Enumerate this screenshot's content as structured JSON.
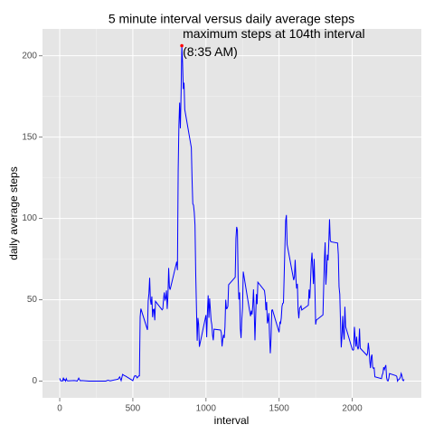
{
  "chart_data": {
    "type": "line",
    "title": "5 minute interval versus daily average steps",
    "x_label": "interval",
    "y_label": "daily average steps",
    "x": [
      0,
      5,
      10,
      15,
      20,
      25,
      30,
      35,
      40,
      45,
      50,
      55,
      100,
      110,
      120,
      130,
      140,
      150,
      200,
      215,
      230,
      245,
      300,
      315,
      330,
      345,
      400,
      410,
      420,
      430,
      440,
      450,
      500,
      510,
      520,
      530,
      540,
      545,
      550,
      555,
      600,
      605,
      610,
      615,
      620,
      625,
      630,
      635,
      640,
      645,
      650,
      655,
      700,
      705,
      710,
      715,
      720,
      725,
      730,
      735,
      740,
      745,
      750,
      755,
      800,
      805,
      810,
      815,
      820,
      825,
      830,
      835,
      840,
      845,
      850,
      855,
      900,
      905,
      910,
      915,
      920,
      925,
      930,
      935,
      940,
      945,
      950,
      955,
      1000,
      1005,
      1010,
      1015,
      1020,
      1025,
      1030,
      1035,
      1040,
      1045,
      1050,
      1055,
      1100,
      1105,
      1110,
      1115,
      1120,
      1125,
      1130,
      1135,
      1140,
      1145,
      1150,
      1155,
      1200,
      1205,
      1210,
      1215,
      1220,
      1225,
      1230,
      1235,
      1240,
      1245,
      1250,
      1255,
      1300,
      1305,
      1310,
      1315,
      1320,
      1325,
      1330,
      1335,
      1340,
      1345,
      1350,
      1355,
      1400,
      1405,
      1410,
      1415,
      1420,
      1425,
      1430,
      1435,
      1440,
      1445,
      1450,
      1455,
      1500,
      1505,
      1510,
      1515,
      1520,
      1525,
      1530,
      1535,
      1540,
      1545,
      1550,
      1555,
      1600,
      1605,
      1610,
      1615,
      1620,
      1625,
      1630,
      1635,
      1640,
      1645,
      1650,
      1655,
      1700,
      1705,
      1710,
      1715,
      1720,
      1725,
      1730,
      1735,
      1740,
      1745,
      1750,
      1755,
      1800,
      1805,
      1810,
      1815,
      1820,
      1825,
      1830,
      1835,
      1840,
      1845,
      1850,
      1855,
      1900,
      1905,
      1910,
      1915,
      1920,
      1925,
      1930,
      1935,
      1940,
      1945,
      1950,
      1955,
      2000,
      2005,
      2010,
      2015,
      2020,
      2025,
      2030,
      2035,
      2040,
      2045,
      2050,
      2055,
      2100,
      2105,
      2110,
      2115,
      2120,
      2125,
      2130,
      2135,
      2140,
      2145,
      2150,
      2155,
      2200,
      2205,
      2210,
      2215,
      2220,
      2225,
      2230,
      2235,
      2240,
      2245,
      2250,
      2255,
      2300,
      2305,
      2310,
      2315,
      2320,
      2325,
      2330,
      2335,
      2340,
      2345,
      2350,
      2355
    ],
    "series": [
      {
        "name": "daily average steps",
        "color": "#0000ff",
        "values": [
          1.7,
          0.3,
          0.1,
          0.2,
          0.1,
          2.1,
          0.5,
          0.9,
          0,
          1.5,
          0.3,
          0.1,
          0.3,
          0.2,
          0,
          1.8,
          0.2,
          0.3,
          0,
          0,
          0,
          0,
          0,
          0,
          0.5,
          0.1,
          1.2,
          2.6,
          0.3,
          4.1,
          3.5,
          3.1,
          0.3,
          3,
          3.3,
          2,
          3.2,
          3.2,
          39.5,
          44.5,
          31.5,
          49.3,
          53.8,
          63.5,
          50,
          47,
          52,
          39.3,
          44,
          44.2,
          37.4,
          49,
          43.8,
          44.4,
          50.5,
          54.5,
          49.9,
          50.9,
          55.7,
          44.3,
          52.3,
          69.5,
          57.8,
          56.2,
          73.4,
          68.2,
          129.4,
          157.5,
          171.2,
          155.4,
          177.3,
          206.2,
          195.9,
          179.6,
          183.4,
          167,
          143.5,
          124,
          109.1,
          108.1,
          103.7,
          95.97,
          66.2,
          45.2,
          24.8,
          38.8,
          35,
          21.1,
          40.6,
          26.98,
          42.4,
          52.7,
          38.9,
          50.8,
          44.3,
          37.4,
          34.7,
          28.3,
          25.1,
          31.9,
          31.4,
          29.7,
          21.3,
          25.5,
          28.4,
          26.5,
          33.4,
          50,
          44.5,
          44.7,
          46,
          59.2,
          63.9,
          87.7,
          94.8,
          92.8,
          63.4,
          50.2,
          54.5,
          32.4,
          26.5,
          37.7,
          45.1,
          67.3,
          42.3,
          39.9,
          43.3,
          40.98,
          46.2,
          56.4,
          42.8,
          25.1,
          39.9,
          53.5,
          47.3,
          60.8,
          55.7,
          51.9,
          43.6,
          48.7,
          35.5,
          37.5,
          41.8,
          27.5,
          17.1,
          26.1,
          43.6,
          43.8,
          30,
          36.1,
          35.5,
          38.8,
          45.96,
          47.8,
          48.1,
          65.3,
          82.9,
          98.7,
          102.1,
          83.96,
          62.1,
          64.1,
          74.5,
          63.2,
          56.9,
          59.8,
          43.9,
          38.6,
          44.7,
          45.5,
          46.2,
          43.7,
          46.6,
          56.3,
          50.7,
          61.2,
          72.7,
          78.9,
          68.9,
          59.7,
          75.1,
          56.5,
          34.8,
          37.5,
          40.7,
          58,
          74.7,
          85.3,
          59.3,
          67.8,
          77.7,
          74.2,
          85.3,
          99.5,
          86.6,
          85.6,
          84.9,
          77.8,
          58,
          53.4,
          36.3,
          20.7,
          27.4,
          40,
          30.2,
          25.5,
          45.7,
          33.5,
          19.6,
          19,
          19.3,
          33.3,
          26.8,
          21.2,
          27.3,
          21.3,
          19.5,
          21.3,
          32.3,
          20.2,
          15.9,
          17.2,
          23.5,
          19.2,
          12.5,
          8,
          14.7,
          16.3,
          8.7,
          7.8,
          8.1,
          2.6,
          1.5,
          3.7,
          4.8,
          8.5,
          7.1,
          8.7,
          9.8,
          2.2,
          0.3,
          0.1,
          1.6,
          4.6,
          3.3,
          2.8,
          0,
          0.8,
          1,
          1.6,
          2.6,
          4.7,
          3.3,
          0.6,
          0.2,
          1.1
        ]
      }
    ],
    "annotation": {
      "x": 835,
      "y": 206.2,
      "color": "#ff0000",
      "lines": [
        "maximum steps at 104th interval",
        "(8:35 AM)"
      ]
    },
    "xlim": [
      -117.75,
      2472.75
    ],
    "xticks": [
      0,
      500,
      1000,
      1500,
      2000
    ],
    "ylim": [
      -10.3,
      216.5
    ],
    "yticks": [
      0,
      50,
      100,
      150,
      200
    ],
    "grid": true,
    "minor_grid": true
  }
}
